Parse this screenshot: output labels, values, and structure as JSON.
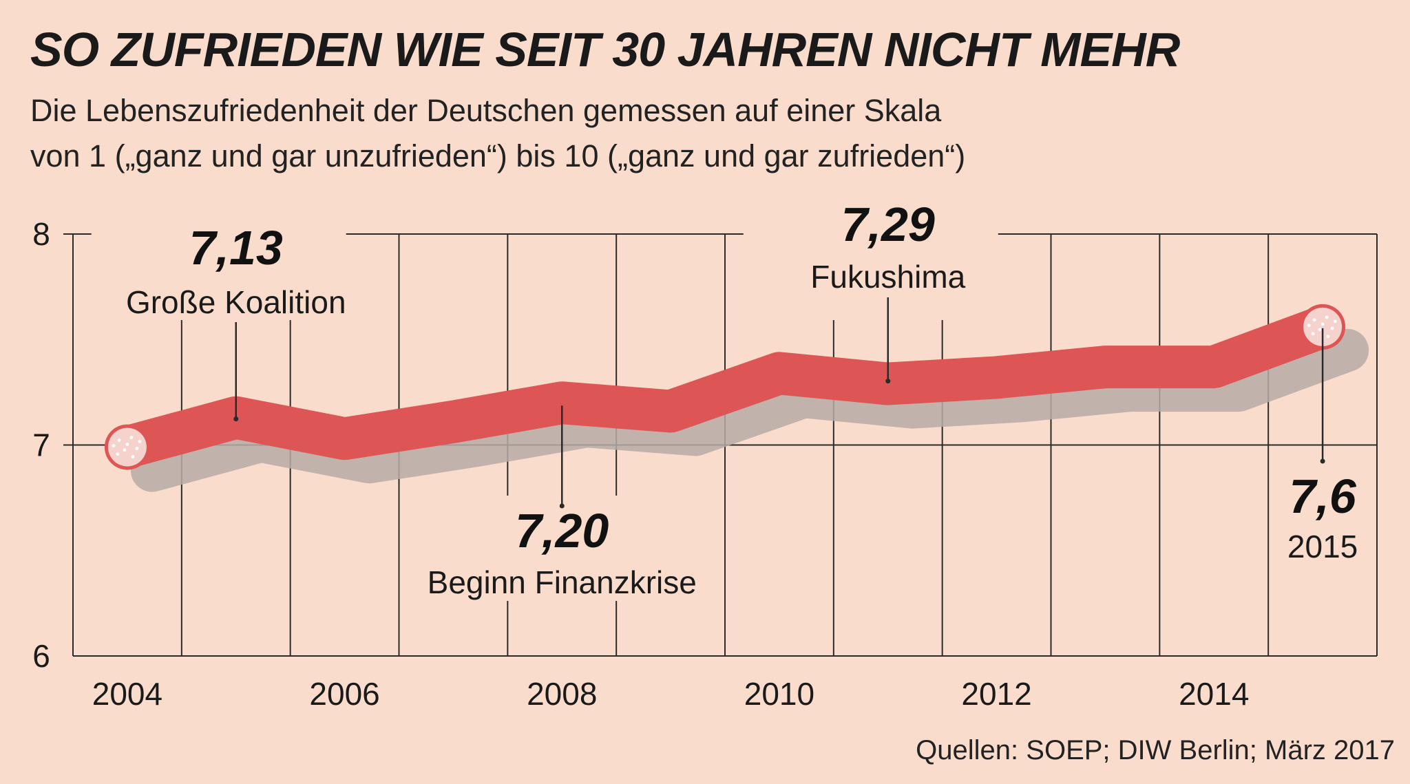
{
  "header": {
    "title": "SO ZUFRIEDEN WIE SEIT 30 JAHREN NICHT MEHR",
    "subtitle_line1": "Die Lebenszufriedenheit der Deutschen gemessen auf einer Skala",
    "subtitle_line2": "von 1 („ganz und gar unzufrieden“) bis 10 („ganz und gar zufrieden“)"
  },
  "source": "Quellen: SOEP; DIW Berlin; März 2017",
  "colors": {
    "background": "#f9dccb",
    "line": "#dd5555",
    "shadow": "#b7aca6",
    "grid": "#2a2a2a",
    "cap_fill": "#f6d2cc",
    "cap_dots": "#ffffff"
  },
  "chart_data": {
    "type": "line",
    "x": [
      2004,
      2005,
      2006,
      2007,
      2008,
      2009,
      2010,
      2011,
      2012,
      2013,
      2014,
      2015
    ],
    "series": [
      {
        "values": [
          6.99,
          7.13,
          7.03,
          7.11,
          7.2,
          7.16,
          7.34,
          7.29,
          7.32,
          7.37,
          7.37,
          7.56
        ]
      }
    ],
    "xlim": [
      2003.5,
      2015.5
    ],
    "ylim": [
      6,
      8
    ],
    "yticks": [
      6,
      7,
      8
    ],
    "xtick_labels": [
      "2004",
      "2006",
      "2008",
      "2010",
      "2012",
      "2014"
    ],
    "xticks": [
      2004,
      2006,
      2008,
      2010,
      2012,
      2014
    ],
    "grid": "vertical",
    "legend": "none",
    "annotations": [
      {
        "x": 2005,
        "value": "7,13",
        "label": "Große Koalition",
        "position": "above"
      },
      {
        "x": 2008,
        "value": "7,20",
        "label": "Beginn Finanzkrise",
        "position": "below"
      },
      {
        "x": 2011,
        "value": "7,29",
        "label": "Fukushima",
        "position": "above"
      },
      {
        "x": 2015,
        "value": "7,6",
        "label": "2015",
        "position": "below"
      }
    ]
  }
}
